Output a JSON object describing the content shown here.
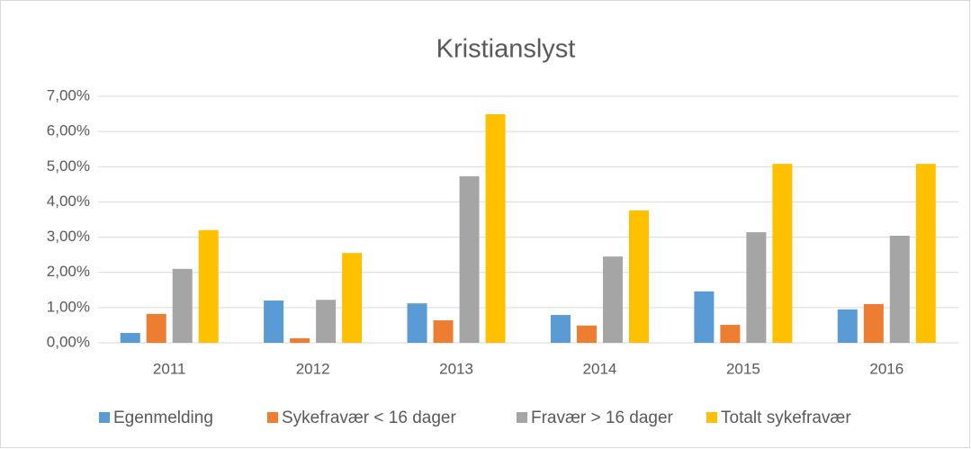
{
  "chart_data": {
    "type": "bar",
    "title": "Kristianslyst",
    "categories": [
      "2011",
      "2012",
      "2013",
      "2014",
      "2015",
      "2016"
    ],
    "series": [
      {
        "name": "Egenmelding",
        "color": "#5b9bd5",
        "values": [
          0.28,
          1.2,
          1.12,
          0.79,
          1.46,
          0.95
        ]
      },
      {
        "name": "Sykefravær < 16 dager",
        "color": "#ed7d31",
        "values": [
          0.82,
          0.13,
          0.64,
          0.49,
          0.51,
          1.1
        ]
      },
      {
        "name": "Fravær > 16 dager",
        "color": "#a5a5a5",
        "values": [
          2.1,
          1.22,
          4.73,
          2.45,
          3.14,
          3.04
        ]
      },
      {
        "name": "Totalt sykefravær",
        "color": "#ffc000",
        "values": [
          3.2,
          2.55,
          6.49,
          3.76,
          5.08,
          5.08
        ]
      }
    ],
    "ylim": [
      0,
      7
    ],
    "yticks": [
      {
        "value": 0,
        "label": "0,00%"
      },
      {
        "value": 1,
        "label": "1,00%"
      },
      {
        "value": 2,
        "label": "2,00%"
      },
      {
        "value": 3,
        "label": "3,00%"
      },
      {
        "value": 4,
        "label": "4,00%"
      },
      {
        "value": 5,
        "label": "5,00%"
      },
      {
        "value": 6,
        "label": "6,00%"
      },
      {
        "value": 7,
        "label": "7,00%"
      }
    ],
    "grid": true,
    "legend": "bottom"
  }
}
